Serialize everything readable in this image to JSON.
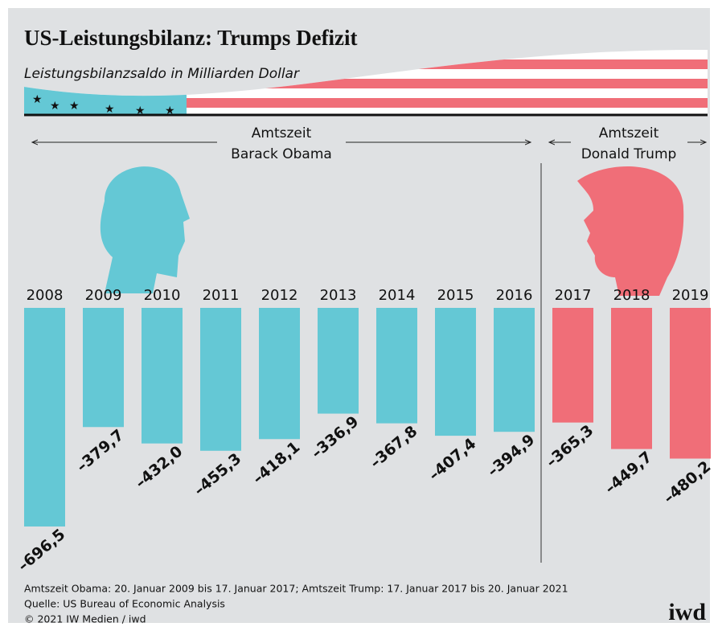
{
  "chart_data": {
    "type": "bar",
    "title": "US-Leistungsbilanz: Trumps Defizit",
    "subtitle": "Leistungsbilanzsaldo in Milliarden Dollar",
    "categories": [
      "2008",
      "2009",
      "2010",
      "2011",
      "2012",
      "2013",
      "2014",
      "2015",
      "2016",
      "2017",
      "2018",
      "2019"
    ],
    "values": [
      -696.5,
      -379.7,
      -432.0,
      -455.3,
      -418.1,
      -336.9,
      -367.8,
      -407.4,
      -394.9,
      -365.3,
      -449.7,
      -480.2
    ],
    "value_labels": [
      "–696,5",
      "–379,7",
      "–432,0",
      "–455,3",
      "–418,1",
      "–336,9",
      "–367,8",
      "–407,4",
      "–394,9",
      "–365,3",
      "–449,7",
      "–480,2"
    ],
    "colors": [
      "#64c8d5",
      "#64c8d5",
      "#64c8d5",
      "#64c8d5",
      "#64c8d5",
      "#64c8d5",
      "#64c8d5",
      "#64c8d5",
      "#64c8d5",
      "#f06e78",
      "#f06e78",
      "#f06e78"
    ],
    "annotations": [
      [
        "Amtszeit",
        "Barack Obama"
      ],
      [
        "Amtszeit",
        "Donald Trump"
      ]
    ],
    "notes": [
      "Amtszeit Obama: 20. Januar 2009 bis 17. Januar 2017; Amtszeit Trump: 17. Januar 2017 bis 20. Januar 2021",
      "Quelle: US Bureau of Economic Analysis",
      "© 2021 IW Medien / iwd"
    ],
    "logo": "iwd"
  }
}
